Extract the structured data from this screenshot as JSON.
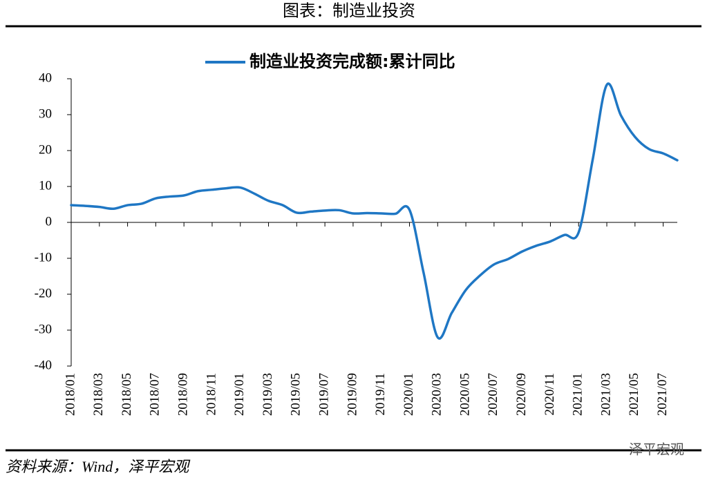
{
  "header": "图表：制造业投资",
  "chart_data": {
    "type": "line",
    "categories": [
      "2018/01",
      null,
      "2018/03",
      null,
      "2018/05",
      null,
      "2018/07",
      null,
      "2018/09",
      null,
      "2018/11",
      null,
      "2019/01",
      null,
      "2019/03",
      null,
      "2019/05",
      null,
      "2019/07",
      null,
      "2019/09",
      null,
      "2019/11",
      null,
      "2020/01",
      null,
      "2020/03",
      null,
      "2020/05",
      null,
      "2020/07",
      null,
      "2020/09",
      null,
      "2020/11",
      null,
      "2021/01",
      null,
      "2021/03",
      null,
      "2021/05",
      null,
      "2021/07",
      null
    ],
    "series": [
      {
        "name": "制造业投资完成额:累计同比",
        "color": "#1f77c4",
        "values": [
          4.8,
          4.6,
          4.3,
          3.8,
          4.8,
          5.2,
          6.7,
          7.2,
          7.5,
          8.7,
          9.1,
          9.5,
          9.7,
          8.0,
          6.0,
          4.8,
          2.7,
          3.0,
          3.3,
          3.4,
          2.5,
          2.6,
          2.5,
          2.4,
          3.5,
          -14,
          -32,
          -25.2,
          -18.8,
          -14.8,
          -11.7,
          -10.2,
          -8.1,
          -6.5,
          -5.3,
          -3.5,
          -2.8,
          17.5,
          38.3,
          29.8,
          23.8,
          20.4,
          19.2,
          17.3
        ]
      }
    ],
    "ylim": [
      -40,
      40
    ],
    "yticks": [
      -40,
      -30,
      -20,
      -10,
      0,
      10,
      20,
      30,
      40
    ]
  },
  "footer": "资料来源：Wind，泽平宏观",
  "watermark": "泽平宏观"
}
